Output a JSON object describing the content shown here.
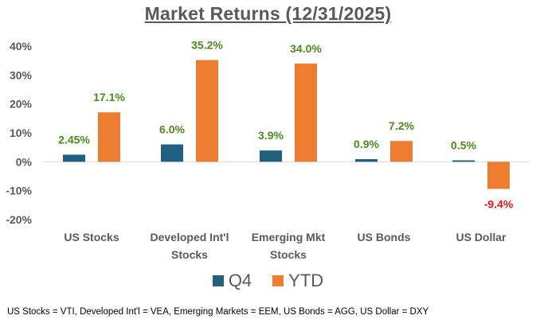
{
  "colors": {
    "q4": "#1f5f80",
    "ytd": "#ed7d31",
    "label_pos": "#4a8a1d",
    "label_neg": "#e8141c",
    "axis_text": "#595959"
  },
  "chart_data": {
    "type": "bar",
    "title": "Market Returns (12/31/2025)",
    "categories": [
      [
        "US Stocks"
      ],
      [
        "Developed Int'l",
        "Stocks"
      ],
      [
        "Emerging Mkt",
        "Stocks"
      ],
      [
        "US Bonds"
      ],
      [
        "US Dollar"
      ]
    ],
    "series": [
      {
        "name": "Q4",
        "values": [
          2.45,
          6.0,
          3.9,
          0.9,
          0.5
        ],
        "labels": [
          "2.45%",
          "6.0%",
          "3.9%",
          "0.9%",
          "0.5%"
        ]
      },
      {
        "name": "YTD",
        "values": [
          17.1,
          35.2,
          34.0,
          7.2,
          -9.4
        ],
        "labels": [
          "17.1%",
          "35.2%",
          "34.0%",
          "7.2%",
          "-9.4%"
        ]
      }
    ],
    "yticks": [
      40,
      30,
      20,
      10,
      0,
      -10,
      -20
    ],
    "ytick_labels": [
      "40%",
      "30%",
      "20%",
      "10%",
      "0%",
      "-10%",
      "-20%"
    ],
    "ylim": [
      -20,
      40
    ],
    "legend_position": "bottom"
  },
  "footnote": "US Stocks = VTI, Developed Int'l = VEA, Emerging Markets = EEM, US Bonds = AGG, US Dollar = DXY"
}
